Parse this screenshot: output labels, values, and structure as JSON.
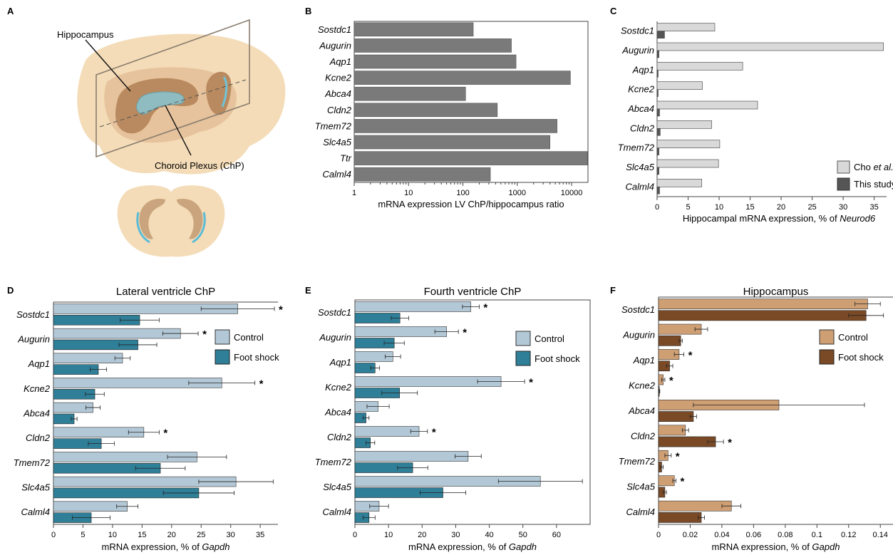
{
  "panel_A": {
    "label": "A",
    "hippocampus_label": "Hippocampus",
    "chp_label": "Choroid Plexus (ChP)"
  },
  "colors": {
    "gray_bar": "#7a7a7a",
    "cho_bar": "#d9d9d9",
    "this_study_bar": "#555555",
    "control_blue": "#b3c8d6",
    "foot_shock_blue": "#2f7f98",
    "control_tan": "#cf9f74",
    "foot_shock_brown": "#7a4a26",
    "brain_light": "#f4dcb8",
    "brain_mid": "#e0b98e",
    "brain_dark": "#b98a5f",
    "chp_blue": "#8fbcc0"
  },
  "chart_data": [
    {
      "panel": "B",
      "type": "bar",
      "orientation": "horizontal",
      "xscale": "log",
      "xlim": [
        1,
        20000
      ],
      "xticks": [
        "1",
        "10",
        "100",
        "1000",
        "10000"
      ],
      "xlabel": "mRNA expression LV ChP/hippocampus ratio",
      "categories": [
        "Sostdc1",
        "Augurin",
        "Aqp1",
        "Kcne2",
        "Abca4",
        "Cldn2",
        "Tmem72",
        "Slc4a5",
        "Ttr",
        "Calml4"
      ],
      "values": [
        155,
        780,
        950,
        9500,
        112,
        430,
        5400,
        4000,
        19500,
        320
      ]
    },
    {
      "panel": "C",
      "type": "bar",
      "orientation": "horizontal",
      "xlim": [
        0,
        37
      ],
      "xticks": [
        "0",
        "5",
        "10",
        "15",
        "20",
        "25",
        "30",
        "35"
      ],
      "xlabel_prefix": "Hippocampal mRNA expression, % of ",
      "xlabel_italic": "Neurod6",
      "categories": [
        "Sostdc1",
        "Augurin",
        "Aqp1",
        "Kcne2",
        "Abca4",
        "Cldn2",
        "Tmem72",
        "Slc4a5",
        "Calml4"
      ],
      "series": [
        {
          "name_prefix": "Cho ",
          "name_italic": "et al.",
          "values": [
            9.3,
            36.5,
            13.8,
            7.3,
            16.2,
            8.8,
            10.1,
            9.9,
            7.2
          ]
        },
        {
          "name": "This study",
          "values": [
            1.2,
            0.3,
            0.1,
            0.1,
            0.4,
            0.5,
            0.3,
            0.3,
            0.4
          ]
        }
      ],
      "legend_position": "bottom-right"
    },
    {
      "panel": "D",
      "title": "Lateral ventricle ChP",
      "type": "bar",
      "orientation": "horizontal",
      "xlim": [
        0,
        38
      ],
      "xticks": [
        "0",
        "5",
        "10",
        "15",
        "20",
        "25",
        "30",
        "35"
      ],
      "xlabel_prefix": "mRNA expression, % of ",
      "xlabel_italic": "Gapdh",
      "categories": [
        "Sostdc1",
        "Augurin",
        "Aqp1",
        "Kcne2",
        "Abca4",
        "Cldn2",
        "Tmem72",
        "Slc4a5",
        "Calml4"
      ],
      "series": [
        {
          "name": "Control",
          "values": [
            31.2,
            21.5,
            11.7,
            28.5,
            6.7,
            15.3,
            24.3,
            30.9,
            12.5
          ],
          "errors": [
            6.2,
            3.0,
            1.3,
            5.6,
            1.2,
            2.6,
            5.0,
            6.3,
            1.8
          ]
        },
        {
          "name": "Foot shock",
          "values": [
            14.6,
            14.3,
            7.6,
            7.0,
            3.5,
            8.1,
            18.1,
            24.6,
            6.4
          ],
          "errors": [
            3.3,
            3.2,
            1.4,
            1.6,
            0.5,
            2.2,
            4.2,
            6.0,
            3.2
          ]
        }
      ],
      "significant": [
        "Sostdc1",
        "Augurin",
        "Kcne2",
        "Cldn2"
      ],
      "legend_position": "top-right"
    },
    {
      "panel": "E",
      "title": "Fourth ventricle ChP",
      "type": "bar",
      "orientation": "horizontal",
      "xlim": [
        0,
        70
      ],
      "xticks": [
        "0",
        "10",
        "20",
        "30",
        "40",
        "50",
        "60"
      ],
      "xlabel_prefix": "mRNA expression, % of ",
      "xlabel_italic": "Gapdh",
      "categories": [
        "Sostdc1",
        "Augurin",
        "Aqp1",
        "Kcne2",
        "Abca4",
        "Cldn2",
        "Tmem72",
        "Slc4a5",
        "Calml4"
      ],
      "series": [
        {
          "name": "Control",
          "values": [
            34.5,
            27.3,
            11.3,
            43.5,
            6.9,
            19.1,
            33.7,
            55.2,
            7.2
          ],
          "errors": [
            2.5,
            3.5,
            2.3,
            7.0,
            3.3,
            2.5,
            3.9,
            12.5,
            2.8
          ]
        },
        {
          "name": "Foot shock",
          "values": [
            13.4,
            11.7,
            6.0,
            13.3,
            3.3,
            4.6,
            17.2,
            26.2,
            4.2
          ],
          "errors": [
            2.6,
            3.0,
            1.3,
            5.3,
            0.9,
            1.3,
            4.5,
            6.8,
            1.8
          ]
        }
      ],
      "significant": [
        "Sostdc1",
        "Augurin",
        "Kcne2",
        "Cldn2"
      ],
      "legend_position": "top-right"
    },
    {
      "panel": "F",
      "title": "Hippocampus",
      "type": "bar",
      "orientation": "horizontal",
      "xlim": [
        0,
        0.148
      ],
      "xticks": [
        "0",
        "0.02",
        "0.04",
        "0.06",
        "0.08",
        "0.1",
        "0.12",
        "0.14"
      ],
      "xlabel_prefix": "mRNA expression, % of ",
      "xlabel_italic": "Gapdh",
      "categories": [
        "Sostdc1",
        "Augurin",
        "Aqp1",
        "Kcne2",
        "Abca4",
        "Cldn2",
        "Tmem72",
        "Slc4a5",
        "Calml4"
      ],
      "series": [
        {
          "name": "Control",
          "values": [
            0.132,
            0.027,
            0.013,
            0.003,
            0.076,
            0.017,
            0.006,
            0.01,
            0.046
          ],
          "errors": [
            0.008,
            0.004,
            0.003,
            0.001,
            0.054,
            0.002,
            0.002,
            0.001,
            0.006
          ]
        },
        {
          "name": "Foot shock",
          "values": [
            0.131,
            0.014,
            0.007,
            0.0005,
            0.022,
            0.036,
            0.002,
            0.004,
            0.027
          ],
          "errors": [
            0.011,
            0.001,
            0.002,
            0.0003,
            0.002,
            0.005,
            0.001,
            0.001,
            0.002
          ]
        }
      ],
      "significant": [
        "Aqp1",
        "Kcne2",
        "Cldn2",
        "Tmem72",
        "Slc4a5"
      ],
      "legend_position": "top-right"
    }
  ]
}
